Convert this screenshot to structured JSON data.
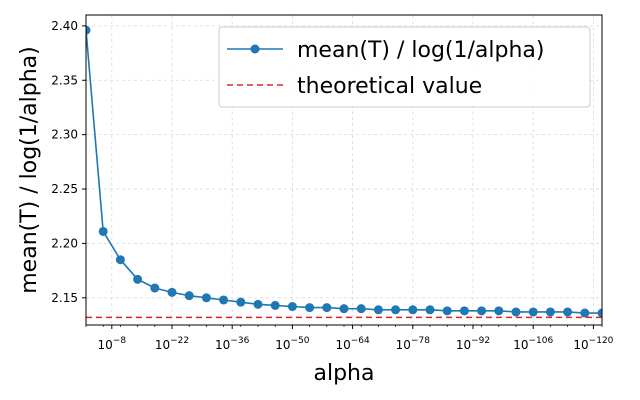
{
  "chart_data": {
    "type": "line",
    "xlabel": "alpha",
    "ylabel": "mean(T) / log(1/alpha)",
    "xscale": "log",
    "x_axis_inverted": true,
    "x_exponents": [
      -2,
      -6,
      -10,
      -14,
      -18,
      -22,
      -26,
      -30,
      -34,
      -38,
      -42,
      -46,
      -50,
      -54,
      -58,
      -62,
      -66,
      -70,
      -74,
      -78,
      -82,
      -86,
      -90,
      -94,
      -98,
      -102,
      -106,
      -110,
      -114,
      -118,
      -122
    ],
    "xticks": [
      {
        "exp": -8,
        "label": "10",
        "sup": "−8"
      },
      {
        "exp": -22,
        "label": "10",
        "sup": "−22"
      },
      {
        "exp": -36,
        "label": "10",
        "sup": "−36"
      },
      {
        "exp": -50,
        "label": "10",
        "sup": "−50"
      },
      {
        "exp": -64,
        "label": "10",
        "sup": "−64"
      },
      {
        "exp": -78,
        "label": "10",
        "sup": "−78"
      },
      {
        "exp": -92,
        "label": "10",
        "sup": "−92"
      },
      {
        "exp": -106,
        "label": "10",
        "sup": "−106"
      },
      {
        "exp": -120,
        "label": "10",
        "sup": "−120"
      }
    ],
    "yticks": [
      "2.15",
      "2.20",
      "2.25",
      "2.30",
      "2.35",
      "2.40"
    ],
    "ylim": [
      2.125,
      2.41
    ],
    "grid": true,
    "legend_position": "top-right",
    "series": [
      {
        "name": "mean(T) / log(1/alpha)",
        "color": "#1f77b4",
        "style": "line-with-markers",
        "values": [
          2.396,
          2.211,
          2.185,
          2.167,
          2.159,
          2.155,
          2.152,
          2.15,
          2.148,
          2.146,
          2.144,
          2.143,
          2.142,
          2.141,
          2.141,
          2.14,
          2.14,
          2.139,
          2.139,
          2.139,
          2.139,
          2.138,
          2.138,
          2.138,
          2.138,
          2.137,
          2.137,
          2.137,
          2.137,
          2.136,
          2.136
        ]
      },
      {
        "name": "theoretical value",
        "color": "#d62728",
        "style": "dashed",
        "values": [
          2.132
        ]
      }
    ]
  }
}
